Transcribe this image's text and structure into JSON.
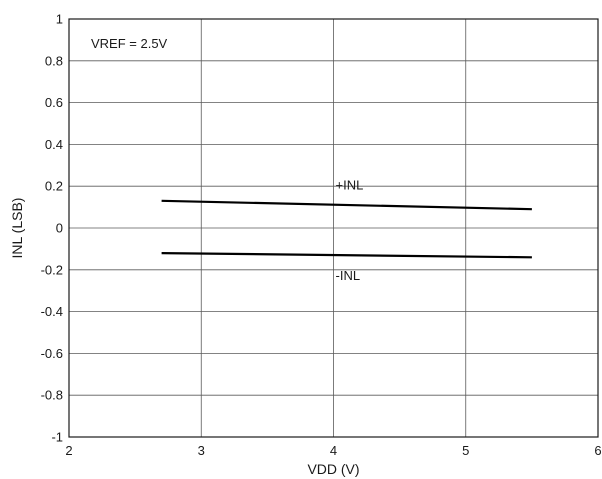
{
  "chart_data": {
    "type": "line",
    "xlabel": "VDD (V)",
    "ylabel": "INL (LSB)",
    "xlim": [
      2,
      6
    ],
    "ylim": [
      -1,
      1
    ],
    "x_ticks": [
      "2",
      "3",
      "4",
      "5",
      "6"
    ],
    "y_ticks": [
      "1",
      "0.8",
      "0.6",
      "0.4",
      "0.2",
      "0",
      "-0.2",
      "-0.4",
      "-0.6",
      "-0.8",
      "-1"
    ],
    "grid": true,
    "annotations": [
      {
        "text": "VREF = 2.5V",
        "position": "top-left"
      }
    ],
    "series": [
      {
        "name": "+INL",
        "x": [
          2.7,
          5.5
        ],
        "y": [
          0.13,
          0.09
        ]
      },
      {
        "name": "-INL",
        "x": [
          2.7,
          5.5
        ],
        "y": [
          -0.12,
          -0.14
        ]
      }
    ]
  }
}
